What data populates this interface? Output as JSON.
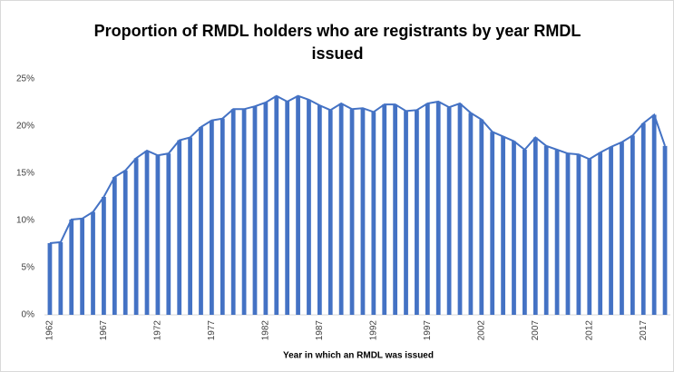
{
  "chart_data": {
    "type": "bar",
    "title": "Proportion of RMDL holders who are registrants by year RMDL issued",
    "x_label": "Year in which an RMDL was issued",
    "categories": [
      "1962",
      null,
      null,
      null,
      null,
      "1967",
      null,
      null,
      null,
      null,
      "1972",
      null,
      null,
      null,
      null,
      "1977",
      null,
      null,
      null,
      null,
      "1982",
      null,
      null,
      null,
      null,
      "1987",
      null,
      null,
      null,
      null,
      "1992",
      null,
      null,
      null,
      null,
      "1997",
      null,
      null,
      null,
      null,
      "2002",
      null,
      null,
      null,
      null,
      "2007",
      null,
      null,
      null,
      null,
      "2012",
      null,
      null,
      null,
      null,
      "2017",
      null,
      null
    ],
    "values": [
      7.6,
      7.7,
      10.1,
      10.2,
      10.9,
      12.5,
      14.6,
      15.3,
      16.6,
      17.4,
      16.9,
      17.1,
      18.5,
      18.8,
      19.9,
      20.6,
      20.8,
      21.8,
      21.8,
      22.1,
      22.5,
      23.2,
      22.6,
      23.2,
      22.8,
      22.2,
      21.7,
      22.4,
      21.8,
      21.9,
      21.5,
      22.3,
      22.3,
      21.6,
      21.7,
      22.4,
      22.6,
      22.0,
      22.4,
      21.4,
      20.7,
      19.4,
      18.9,
      18.4,
      17.5,
      18.8,
      17.9,
      17.5,
      17.1,
      17.0,
      16.5,
      17.2,
      17.8,
      18.3,
      19.0,
      20.3,
      21.2,
      17.9
    ],
    "color": "#4472c4",
    "ylim": [
      0,
      25
    ],
    "yticks": [
      {
        "value": 0,
        "label": "0%"
      },
      {
        "value": 5,
        "label": "5%"
      },
      {
        "value": 10,
        "label": "10%"
      },
      {
        "value": 15,
        "label": "15%"
      },
      {
        "value": 20,
        "label": "20%"
      },
      {
        "value": 25,
        "label": "25%"
      }
    ],
    "grid": false
  }
}
